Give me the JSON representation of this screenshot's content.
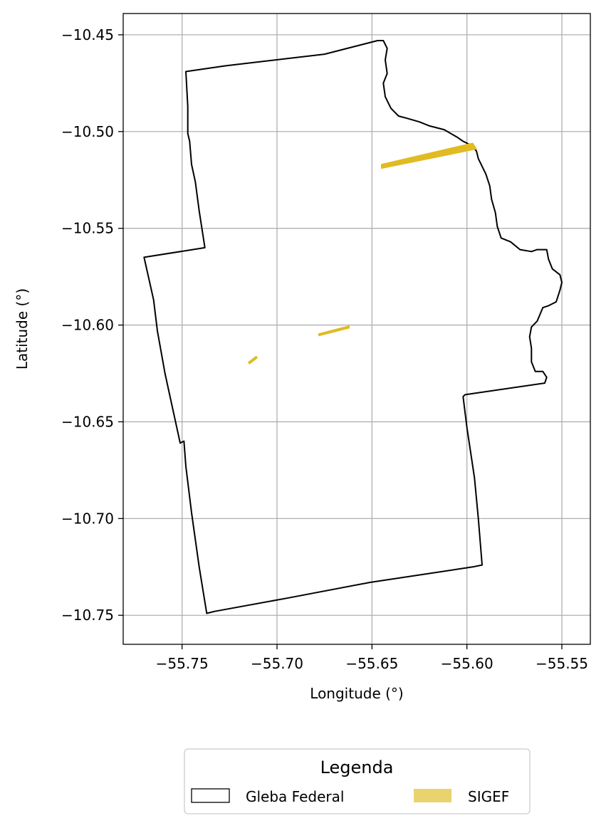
{
  "chart_data": {
    "type": "map",
    "xlabel": "Longitude (°)",
    "ylabel": "Latitude (°)",
    "xlim": [
      -55.781,
      -55.535
    ],
    "ylim": [
      -10.765,
      -10.439
    ],
    "xticks": [
      -55.75,
      -55.7,
      -55.65,
      -55.6,
      -55.55
    ],
    "xtick_labels": [
      "−55.75",
      "−55.70",
      "−55.65",
      "−55.60",
      "−55.55"
    ],
    "yticks": [
      -10.45,
      -10.5,
      -10.55,
      -10.6,
      -10.65,
      -10.7,
      -10.75
    ],
    "ytick_labels": [
      "−10.45",
      "−10.50",
      "−10.55",
      "−10.60",
      "−10.65",
      "−10.70",
      "−10.75"
    ],
    "grid": true,
    "legend": {
      "title": "Legenda",
      "placement": "bottom-center",
      "entries": [
        {
          "label": "Gleba Federal",
          "style": "outline",
          "color": "#000000"
        },
        {
          "label": "SIGEF",
          "style": "fill",
          "color": "#e8d36f"
        }
      ]
    },
    "series": [
      {
        "name": "Gleba Federal",
        "kind": "polygon",
        "stroke": "#000000",
        "coordinates": [
          [
            -55.748,
            -10.469
          ],
          [
            -55.727,
            -10.466
          ],
          [
            -55.675,
            -10.46
          ],
          [
            -55.647,
            -10.453
          ],
          [
            -55.644,
            -10.453
          ],
          [
            -55.642,
            -10.457
          ],
          [
            -55.643,
            -10.463
          ],
          [
            -55.642,
            -10.47
          ],
          [
            -55.644,
            -10.475
          ],
          [
            -55.643,
            -10.482
          ],
          [
            -55.64,
            -10.488
          ],
          [
            -55.636,
            -10.492
          ],
          [
            -55.632,
            -10.493
          ],
          [
            -55.625,
            -10.495
          ],
          [
            -55.62,
            -10.497
          ],
          [
            -55.612,
            -10.499
          ],
          [
            -55.605,
            -10.503
          ],
          [
            -55.602,
            -10.505
          ],
          [
            -55.598,
            -10.507
          ],
          [
            -55.595,
            -10.51
          ],
          [
            -55.594,
            -10.514
          ],
          [
            -55.59,
            -10.522
          ],
          [
            -55.588,
            -10.528
          ],
          [
            -55.587,
            -10.535
          ],
          [
            -55.585,
            -10.542
          ],
          [
            -55.584,
            -10.549
          ],
          [
            -55.582,
            -10.555
          ],
          [
            -55.577,
            -10.557
          ],
          [
            -55.572,
            -10.561
          ],
          [
            -55.566,
            -10.562
          ],
          [
            -55.563,
            -10.561
          ],
          [
            -55.558,
            -10.561
          ],
          [
            -55.557,
            -10.566
          ],
          [
            -55.555,
            -10.571
          ],
          [
            -55.551,
            -10.574
          ],
          [
            -55.55,
            -10.578
          ],
          [
            -55.551,
            -10.582
          ],
          [
            -55.553,
            -10.588
          ],
          [
            -55.557,
            -10.59
          ],
          [
            -55.56,
            -10.591
          ],
          [
            -55.563,
            -10.598
          ],
          [
            -55.566,
            -10.601
          ],
          [
            -55.567,
            -10.606
          ],
          [
            -55.566,
            -10.612
          ],
          [
            -55.566,
            -10.619
          ],
          [
            -55.564,
            -10.624
          ],
          [
            -55.56,
            -10.624
          ],
          [
            -55.558,
            -10.627
          ],
          [
            -55.559,
            -10.63
          ],
          [
            -55.601,
            -10.636
          ],
          [
            -55.602,
            -10.637
          ],
          [
            -55.6,
            -10.653
          ],
          [
            -55.596,
            -10.679
          ],
          [
            -55.594,
            -10.7
          ],
          [
            -55.592,
            -10.724
          ],
          [
            -55.597,
            -10.725
          ],
          [
            -55.651,
            -10.733
          ],
          [
            -55.694,
            -10.741
          ],
          [
            -55.733,
            -10.748
          ],
          [
            -55.737,
            -10.749
          ],
          [
            -55.741,
            -10.725
          ],
          [
            -55.745,
            -10.697
          ],
          [
            -55.748,
            -10.673
          ],
          [
            -55.749,
            -10.66
          ],
          [
            -55.751,
            -10.661
          ],
          [
            -55.759,
            -10.625
          ],
          [
            -55.763,
            -10.603
          ],
          [
            -55.765,
            -10.587
          ],
          [
            -55.77,
            -10.565
          ],
          [
            -55.738,
            -10.56
          ],
          [
            -55.741,
            -10.541
          ],
          [
            -55.743,
            -10.526
          ],
          [
            -55.745,
            -10.517
          ],
          [
            -55.746,
            -10.505
          ],
          [
            -55.747,
            -10.501
          ],
          [
            -55.747,
            -10.487
          ],
          [
            -55.748,
            -10.469
          ]
        ]
      },
      {
        "name": "SIGEF",
        "kind": "polygons",
        "fill": "#e0bb22",
        "shapes": [
          [
            [
              -55.645,
              -10.517
            ],
            [
              -55.597,
              -10.506
            ],
            [
              -55.595,
              -10.509
            ],
            [
              -55.645,
              -10.519
            ]
          ],
          [
            [
              -55.678,
              -10.6045
            ],
            [
              -55.662,
              -10.6005
            ],
            [
              -55.662,
              -10.6015
            ],
            [
              -55.678,
              -10.6055
            ]
          ],
          [
            [
              -55.715,
              -10.6192
            ],
            [
              -55.711,
              -10.6162
            ],
            [
              -55.7105,
              -10.617
            ],
            [
              -55.7145,
              -10.62
            ]
          ]
        ]
      }
    ]
  }
}
